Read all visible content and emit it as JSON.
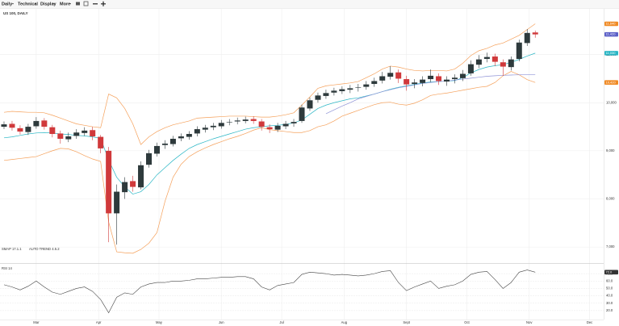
{
  "toolbar": {
    "items": [
      "Daily",
      "Technical",
      "Display",
      "More"
    ]
  },
  "chart_data": [
    {
      "type": "candlestick",
      "title": "US 100, DAILY",
      "indicators": [
        "SMAP 17.1.1",
        "AUTO TREND 4.5.2"
      ],
      "x": [
        44,
        48,
        52,
        56,
        60,
        64,
        68,
        72,
        76,
        80,
        84,
        88,
        92,
        96,
        100,
        104,
        108,
        112,
        116,
        120,
        124,
        128,
        132,
        136,
        140,
        144,
        148,
        152,
        156,
        160,
        164,
        168,
        172,
        176,
        180,
        184,
        188,
        192,
        196,
        200,
        204,
        208,
        212,
        216,
        220,
        224,
        228,
        232,
        236,
        240,
        244,
        248,
        252,
        256,
        260,
        264,
        268,
        272,
        276,
        280,
        284,
        288,
        292,
        296,
        300,
        304,
        308
      ],
      "open": [
        9500,
        9560,
        9470,
        9390,
        9510,
        9630,
        9490,
        9360,
        9240,
        9310,
        9370,
        9430,
        9290,
        9000,
        7700,
        8140,
        8370,
        8240,
        8710,
        8940,
        9120,
        9140,
        9260,
        9290,
        9360,
        9440,
        9490,
        9510,
        9590,
        9610,
        9620,
        9660,
        9610,
        9490,
        9440,
        9510,
        9570,
        9620,
        9880,
        10060,
        10140,
        10210,
        10240,
        10270,
        10310,
        10330,
        10390,
        10460,
        10540,
        10630,
        10490,
        10390,
        10410,
        10490,
        10550,
        10440,
        10490,
        10510,
        10610,
        10790,
        10910,
        10960,
        10840,
        10740,
        10910,
        11240,
        11460
      ],
      "high": [
        9610,
        9620,
        9530,
        9560,
        9700,
        9680,
        9540,
        9420,
        9380,
        9450,
        9490,
        9500,
        9330,
        9080,
        8300,
        8450,
        8480,
        8780,
        9020,
        9170,
        9220,
        9310,
        9360,
        9410,
        9510,
        9540,
        9580,
        9640,
        9660,
        9690,
        9710,
        9720,
        9660,
        9550,
        9580,
        9620,
        9660,
        9960,
        10110,
        10210,
        10270,
        10310,
        10340,
        10370,
        10390,
        10450,
        10520,
        10640,
        10760,
        10690,
        10560,
        10490,
        10550,
        10690,
        10610,
        10550,
        10590,
        10680,
        10880,
        10990,
        11040,
        11020,
        10900,
        10960,
        11310,
        11530,
        11500
      ],
      "low": [
        9450,
        9420,
        9340,
        9330,
        9460,
        9440,
        9280,
        9150,
        9180,
        9250,
        9310,
        9220,
        8950,
        7100,
        7050,
        8000,
        8150,
        8200,
        8650,
        8880,
        9040,
        9090,
        9200,
        9230,
        9300,
        9380,
        9430,
        9460,
        9530,
        9550,
        9570,
        9560,
        9420,
        9370,
        9390,
        9450,
        9500,
        9580,
        9830,
        10000,
        10080,
        10150,
        10180,
        10200,
        10230,
        10270,
        10330,
        10400,
        10480,
        10410,
        10250,
        10300,
        10340,
        10430,
        10370,
        10350,
        10400,
        10450,
        10560,
        10720,
        10840,
        10760,
        10560,
        10670,
        10860,
        11180,
        11350
      ],
      "close": [
        9550,
        9480,
        9400,
        9500,
        9620,
        9500,
        9350,
        9250,
        9300,
        9380,
        9420,
        9300,
        9050,
        7700,
        8150,
        8350,
        8250,
        8700,
        8950,
        9100,
        9150,
        9250,
        9300,
        9350,
        9450,
        9480,
        9520,
        9580,
        9600,
        9630,
        9650,
        9620,
        9500,
        9450,
        9520,
        9560,
        9600,
        9900,
        10050,
        10150,
        10200,
        10250,
        10280,
        10300,
        10320,
        10380,
        10450,
        10550,
        10620,
        10500,
        10380,
        10420,
        10480,
        10560,
        10450,
        10480,
        10520,
        10600,
        10800,
        10900,
        10950,
        10850,
        10750,
        10900,
        11250,
        11450,
        11420
      ],
      "up_color": "#2e3a3c",
      "down_color": "#d0393b",
      "overlays": [
        {
          "color": "#f5a05a",
          "values": [
            9800,
            9820,
            9810,
            9800,
            9800,
            9790,
            9740,
            9680,
            9620,
            9560,
            9530,
            9500,
            9480,
            10180,
            10100,
            9880,
            9560,
            9130,
            9290,
            9400,
            9480,
            9540,
            9580,
            9620,
            9680,
            9690,
            9700,
            9710,
            9720,
            9720,
            9720,
            9710,
            9700,
            9700,
            9720,
            9750,
            9790,
            9950,
            10120,
            10300,
            10350,
            10370,
            10390,
            10410,
            10440,
            10520,
            10600,
            10700,
            10760,
            10740,
            10700,
            10670,
            10660,
            10670,
            10670,
            10660,
            10700,
            10820,
            10980,
            11080,
            11130,
            11200,
            11240,
            11320,
            11400,
            11520,
            11640
          ]
        },
        {
          "color": "#f5a05a",
          "values": [
            8800,
            8820,
            8840,
            8860,
            8880,
            8940,
            9000,
            9050,
            9040,
            8980,
            8900,
            8830,
            8780,
            7520,
            6900,
            6880,
            6870,
            6950,
            7080,
            7300,
            7950,
            8450,
            8720,
            8880,
            8980,
            9060,
            9130,
            9190,
            9250,
            9300,
            9360,
            9430,
            9480,
            9440,
            9420,
            9400,
            9380,
            9380,
            9420,
            9500,
            9540,
            9620,
            9720,
            9780,
            9840,
            9900,
            9960,
            10000,
            10010,
            9970,
            9950,
            9990,
            10060,
            10150,
            10180,
            10200,
            10230,
            10260,
            10290,
            10320,
            10340,
            10420,
            10560,
            10650,
            10580,
            10480,
            10420
          ]
        },
        {
          "color": "#29b6c5",
          "values": [
            9270,
            9290,
            9320,
            9350,
            9370,
            9380,
            9370,
            9350,
            9340,
            9320,
            9310,
            9290,
            9260,
            8810,
            8450,
            8250,
            8100,
            8150,
            8300,
            8500,
            8650,
            8800,
            8930,
            9050,
            9130,
            9190,
            9250,
            9300,
            9350,
            9400,
            9450,
            9480,
            9500,
            9520,
            9530,
            9550,
            9580,
            9640,
            9760,
            9880,
            9950,
            10000,
            10040,
            10080,
            10100,
            10140,
            10180,
            10230,
            10280,
            10320,
            10350,
            10380,
            10410,
            10430,
            10440,
            10450,
            10460,
            10520,
            10620,
            10690,
            10740,
            10770,
            10790,
            10840,
            10900,
            10970,
            11030
          ]
        },
        {
          "color": "#8f93d6",
          "values": [
            null,
            null,
            null,
            null,
            null,
            null,
            null,
            null,
            null,
            null,
            null,
            null,
            null,
            null,
            null,
            null,
            null,
            null,
            null,
            null,
            null,
            null,
            null,
            null,
            null,
            null,
            null,
            null,
            null,
            null,
            null,
            null,
            null,
            null,
            null,
            null,
            null,
            null,
            null,
            null,
            9770,
            9850,
            9930,
            10000,
            10080,
            10130,
            10180,
            10230,
            10270,
            10310,
            10340,
            10370,
            10400,
            10420,
            10440,
            10450,
            10470,
            10490,
            10510,
            10530,
            10550,
            10560,
            10570,
            10575,
            10580,
            10580,
            10580
          ]
        }
      ],
      "flags": [
        {
          "value": 11640,
          "label": "11,640",
          "color": "#f08a24"
        },
        {
          "value": 11420,
          "label": "11,420",
          "color": "#5b5fc7"
        },
        {
          "value": 11030,
          "label": "11,030",
          "color": "#29b6c5"
        },
        {
          "value": 10420,
          "label": "10,420",
          "color": "#f08a24"
        }
      ],
      "xlim": [
        42,
        342
      ],
      "xticks": [
        {
          "value": 60,
          "label": "Mar"
        },
        {
          "value": 91,
          "label": "Apr"
        },
        {
          "value": 121,
          "label": "May"
        },
        {
          "value": 152,
          "label": "Jun"
        },
        {
          "value": 182,
          "label": "Jul"
        },
        {
          "value": 213,
          "label": "Aug"
        },
        {
          "value": 244,
          "label": "Sept"
        },
        {
          "value": 274,
          "label": "Oct"
        },
        {
          "value": 305,
          "label": "Nov"
        },
        {
          "value": 335,
          "label": "Dec"
        }
      ],
      "ylim": [
        6700,
        11900
      ],
      "yticks": [
        {
          "value": 7000,
          "label": "7,000"
        },
        {
          "value": 8000,
          "label": "8,000"
        },
        {
          "value": 9000,
          "label": "9,000"
        },
        {
          "value": 10000,
          "label": "10,000"
        },
        {
          "value": 11000,
          "label": "11,000"
        }
      ],
      "grid": true
    },
    {
      "type": "line",
      "title": "RSI 14",
      "x": [
        44,
        48,
        52,
        56,
        60,
        64,
        68,
        72,
        76,
        80,
        84,
        88,
        92,
        96,
        100,
        104,
        108,
        112,
        116,
        120,
        124,
        128,
        132,
        136,
        140,
        144,
        148,
        152,
        156,
        160,
        164,
        168,
        172,
        176,
        180,
        184,
        188,
        192,
        196,
        200,
        204,
        208,
        212,
        216,
        220,
        224,
        228,
        232,
        236,
        240,
        244,
        248,
        252,
        256,
        260,
        264,
        268,
        272,
        276,
        280,
        284,
        288,
        292,
        296,
        300,
        304,
        308
      ],
      "values": [
        55,
        52,
        48,
        53,
        60,
        52,
        45,
        42,
        46,
        50,
        52,
        46,
        35,
        17,
        38,
        44,
        42,
        52,
        56,
        58,
        58,
        60,
        60,
        61,
        63,
        63,
        64,
        65,
        65,
        66,
        66,
        63,
        52,
        48,
        54,
        56,
        58,
        69,
        72,
        71,
        70,
        68,
        69,
        68,
        67,
        68,
        70,
        73,
        74,
        58,
        47,
        52,
        56,
        60,
        50,
        53,
        55,
        60,
        69,
        72,
        73,
        62,
        50,
        58,
        72,
        75,
        72
      ],
      "color": "#444444",
      "flags": [
        {
          "value": 72,
          "label": "72.0",
          "color": "#333333"
        }
      ],
      "xlim": [
        42,
        342
      ],
      "ylim": [
        10,
        80
      ],
      "yticks": [
        {
          "value": 20,
          "label": "20.0"
        },
        {
          "value": 30,
          "label": "30.0"
        },
        {
          "value": 40,
          "label": "40.0"
        },
        {
          "value": 50,
          "label": "50.0"
        },
        {
          "value": 60,
          "label": "60.0"
        },
        {
          "value": 70,
          "label": "70.0"
        }
      ],
      "grid": true
    }
  ]
}
